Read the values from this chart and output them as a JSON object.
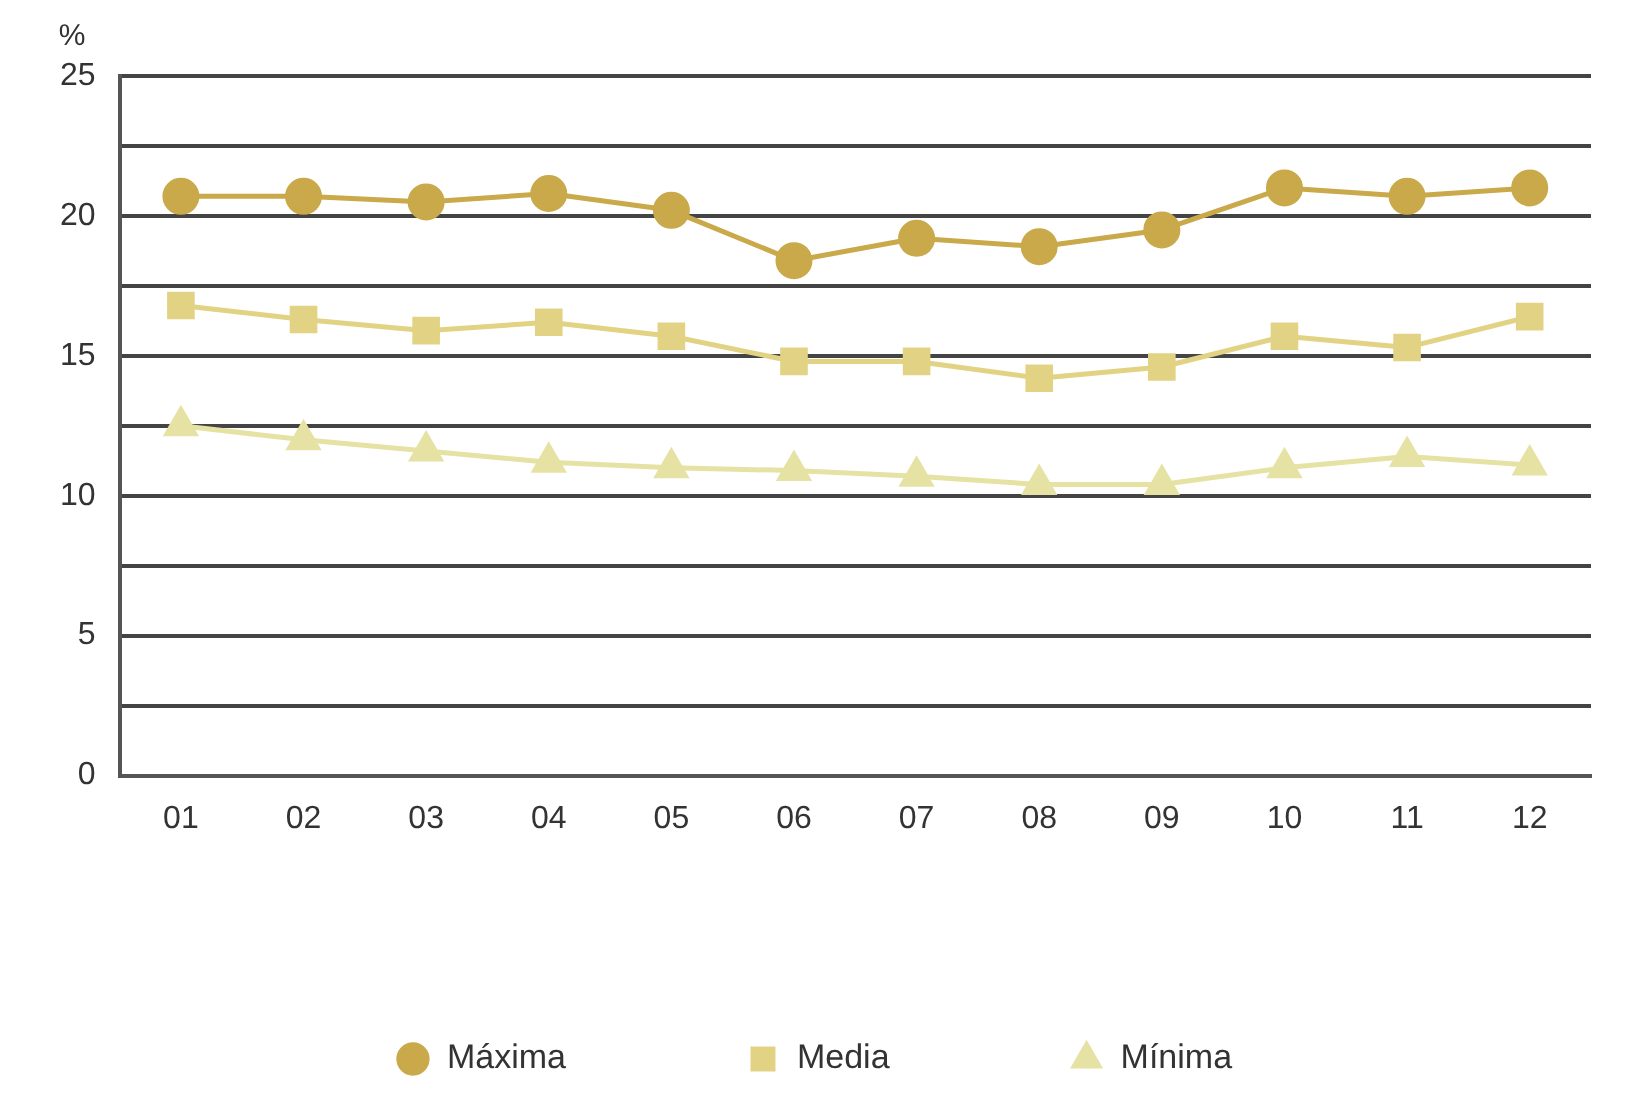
{
  "chart_data": {
    "type": "line",
    "ylabel": "%",
    "categories": [
      "01",
      "02",
      "03",
      "04",
      "05",
      "06",
      "07",
      "08",
      "09",
      "10",
      "11",
      "12"
    ],
    "series": [
      {
        "name": "Máxima",
        "color": "#c9a94a",
        "marker": "circle",
        "values": [
          20.7,
          20.7,
          20.5,
          20.8,
          20.2,
          18.4,
          19.2,
          18.9,
          19.5,
          21.0,
          20.7,
          21.0
        ]
      },
      {
        "name": "Media",
        "color": "#e2d384",
        "marker": "square",
        "values": [
          16.8,
          16.3,
          15.9,
          16.2,
          15.7,
          14.8,
          14.8,
          14.2,
          14.6,
          15.7,
          15.3,
          16.4
        ]
      },
      {
        "name": "Mínima",
        "color": "#e6e2a4",
        "marker": "triangle",
        "values": [
          12.5,
          12.0,
          11.6,
          11.2,
          11.0,
          10.9,
          10.7,
          10.4,
          10.4,
          11.0,
          11.4,
          11.1
        ]
      }
    ],
    "ylim": [
      0,
      25
    ],
    "yticks": [
      0,
      {
        "value": 2.5,
        "label": null
      },
      5,
      {
        "value": 7.5,
        "label": null
      },
      10,
      {
        "value": 12.5,
        "label": null
      },
      15,
      {
        "value": 17.5,
        "label": null
      },
      20,
      {
        "value": 22.5,
        "label": null
      },
      25
    ],
    "grid": "y",
    "legend": "bottom",
    "line_style": "solid"
  }
}
